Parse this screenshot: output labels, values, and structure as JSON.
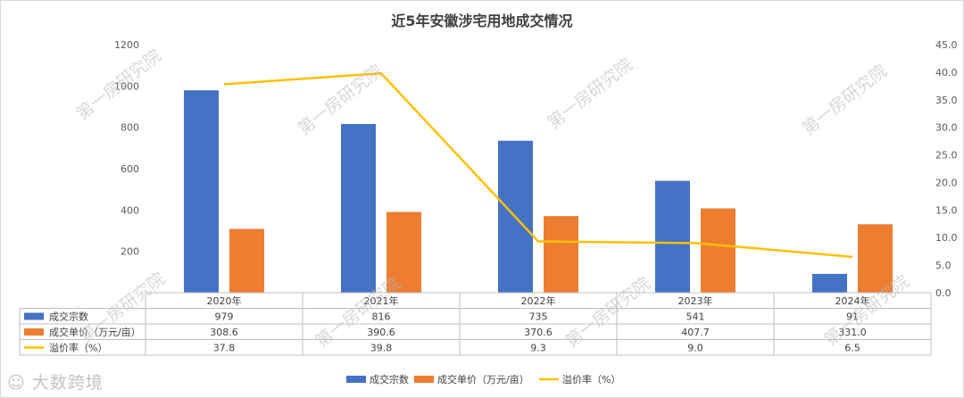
{
  "chart_data": {
    "type": "bar",
    "title": "近5年安徽涉宅用地成交情况",
    "categories": [
      "2020年",
      "2021年",
      "2022年",
      "2023年",
      "2024年"
    ],
    "series": [
      {
        "name": "成交宗数",
        "axis": "left",
        "kind": "bar",
        "color": "#4472c4",
        "values": [
          979,
          816,
          735,
          541,
          91
        ],
        "labels": [
          "979",
          "816",
          "735",
          "541",
          "91"
        ]
      },
      {
        "name": "成交单价（万元/亩）",
        "axis": "left",
        "kind": "bar",
        "color": "#ed7d31",
        "values": [
          308.6,
          390.6,
          370.6,
          407.7,
          331.0
        ],
        "labels": [
          "308.6",
          "390.6",
          "370.6",
          "407.7",
          "331.0"
        ]
      },
      {
        "name": "溢价率（%）",
        "axis": "right",
        "kind": "line",
        "color": "#ffc000",
        "values": [
          37.8,
          39.8,
          9.3,
          9.0,
          6.5
        ],
        "labels": [
          "37.8",
          "39.8",
          "9.3",
          "9.0",
          "6.5"
        ]
      }
    ],
    "y_left": {
      "min": 0,
      "max": 1200,
      "ticks": [
        "200",
        "400",
        "600",
        "800",
        "1000",
        "1200"
      ]
    },
    "y_right": {
      "min": 0,
      "max": 45,
      "ticks": [
        "0.0",
        "5.0",
        "10.0",
        "15.0",
        "20.0",
        "25.0",
        "30.0",
        "35.0",
        "40.0",
        "45.0"
      ]
    },
    "grid": false,
    "legend_position": "bottom",
    "data_table": true
  },
  "watermark": "第一房研究院",
  "logo_text": "大数跨境"
}
